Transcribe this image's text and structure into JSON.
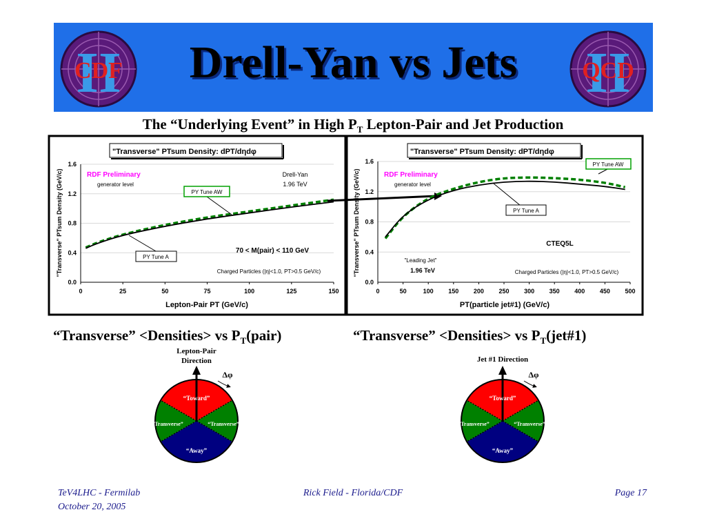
{
  "header": {
    "title": "Drell-Yan vs Jets",
    "left_logo_text": "CDF",
    "right_logo_text": "QCD",
    "logo_numeral": "II"
  },
  "subtitle": {
    "text_before": "The “Underlying Event” in High P",
    "text_sub": "T",
    "text_after": " Lepton-Pair and Jet Production"
  },
  "captions": {
    "left": {
      "before": "“Transverse” <Densities> vs P",
      "sub": "T",
      "after": "(pair)"
    },
    "right": {
      "before": "“Transverse” <Densities> vs P",
      "sub": "T",
      "after": "(jet#1)"
    }
  },
  "diagrams": {
    "left": {
      "direction_label_1": "Lepton-Pair",
      "direction_label_2": "Direction",
      "dphi": "Δφ",
      "toward": "“Toward”",
      "transverse_left": "“Transverse”",
      "transverse_right": "“Transverse”",
      "away": "“Away”"
    },
    "right": {
      "direction_label_1": "Jet #1 Direction",
      "dphi": "Δφ",
      "toward": "“Toward”",
      "transverse_left": "“Transverse”",
      "transverse_right": "“Transverse”",
      "away": "“Away”"
    },
    "colors": {
      "toward": "#ff0000",
      "transverse": "#008000",
      "away": "#000080"
    }
  },
  "footer": {
    "left_line1": "TeV4LHC - Fermilab",
    "left_line2": "October 20, 2005",
    "center": "Rick Field - Florida/CDF",
    "right": "Page 17"
  },
  "colors": {
    "banner": "#1f6fe8",
    "rdf": "#ff00ff",
    "py_aw": "#008000",
    "py_a": "#000000",
    "tag_border": "#00a000"
  },
  "chart_data": [
    {
      "type": "line",
      "title": "\"Transverse\" PTsum Density: dPT/dηdφ",
      "xlabel": "Lepton-Pair PT  (GeV/c)",
      "ylabel": "\"Transverse\" PTsum Density (GeV/c)",
      "xlim": [
        0,
        150
      ],
      "ylim": [
        0,
        1.6
      ],
      "xticks": [
        "0",
        "25",
        "50",
        "75",
        "100",
        "125",
        "150"
      ],
      "yticks": [
        "0.0",
        "0.4",
        "0.8",
        "1.2",
        "1.6"
      ],
      "grid": true,
      "annotations": {
        "rdf": "RDF Preliminary",
        "gen": "generator level",
        "process_1": "Drell-Yan",
        "process_2": "1.96 TeV",
        "mass_window": "70 < M(pair) < 110 GeV",
        "cuts": "Charged Particles (|η|<1.0, PT>0.5 GeV/c)",
        "tag_aw": "PY Tune AW",
        "tag_a": "PY Tune A"
      },
      "series": [
        {
          "name": "PY Tune AW",
          "style": "dashed",
          "x": [
            3,
            10,
            25,
            50,
            75,
            100,
            125,
            150
          ],
          "y": [
            0.47,
            0.54,
            0.65,
            0.78,
            0.88,
            0.96,
            1.04,
            1.12
          ]
        },
        {
          "name": "PY Tune A",
          "style": "solid",
          "x": [
            3,
            10,
            25,
            50,
            75,
            100,
            125,
            150
          ],
          "y": [
            0.46,
            0.53,
            0.64,
            0.76,
            0.86,
            0.94,
            1.02,
            1.09
          ]
        }
      ]
    },
    {
      "type": "line",
      "title": "\"Transverse\" PTsum Density: dPT/dηdφ",
      "xlabel": "PT(particle jet#1)  (GeV/c)",
      "ylabel": "\"Transverse\" PTsum Density (GeV/c)",
      "xlim": [
        0,
        500
      ],
      "ylim": [
        0,
        1.6
      ],
      "xticks": [
        "0",
        "50",
        "100",
        "150",
        "200",
        "250",
        "300",
        "350",
        "400",
        "450",
        "500"
      ],
      "yticks": [
        "0.0",
        "0.4",
        "0.8",
        "1.2",
        "1.6"
      ],
      "grid": true,
      "annotations": {
        "rdf": "RDF Preliminary",
        "gen": "generator level",
        "pdf": "CTEQ5L",
        "leading_jet_1": "\"Leading Jet\"",
        "leading_jet_2": "1.96 TeV",
        "cuts": "Charged Particles (|η|<1.0, PT>0.5 GeV/c)",
        "tag_aw": "PY Tune AW",
        "tag_a": "PY Tune A"
      },
      "series": [
        {
          "name": "PY Tune AW",
          "style": "dashed",
          "x": [
            15,
            50,
            100,
            150,
            200,
            250,
            300,
            350,
            400,
            450,
            490
          ],
          "y": [
            0.58,
            0.88,
            1.12,
            1.24,
            1.33,
            1.38,
            1.39,
            1.38,
            1.36,
            1.32,
            1.26
          ]
        },
        {
          "name": "PY Tune A",
          "style": "solid",
          "x": [
            15,
            50,
            100,
            150,
            200,
            250,
            300,
            350,
            400,
            450,
            490
          ],
          "y": [
            0.6,
            0.89,
            1.1,
            1.22,
            1.29,
            1.33,
            1.34,
            1.33,
            1.3,
            1.27,
            1.23
          ]
        }
      ]
    }
  ]
}
